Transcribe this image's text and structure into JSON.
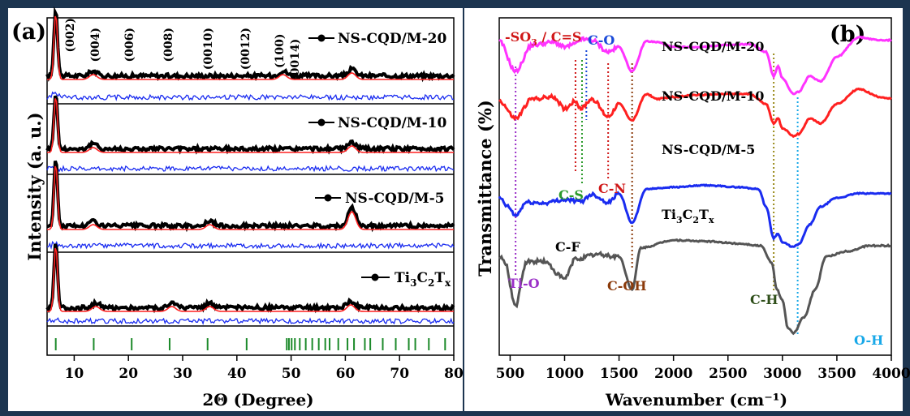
{
  "panel_a": {
    "label": "(a)",
    "ylabel": "Intensity (a. u.)",
    "peak_labels": [
      "(002)",
      "(004)",
      "(006)",
      "(008)",
      "(0010)",
      "(0012)",
      "(100)",
      "(0014)"
    ]
  },
  "panel_b": {
    "label": "(b)",
    "annotations": {
      "so3_prefix": "-SO",
      "so3_sub": "3",
      "so3_suffix": " / C=S",
      "co": "C-O",
      "cs": "C-S",
      "cn": "C-N",
      "cf": "C-F",
      "coh": "C-OH",
      "tio": "Ti-O",
      "ch": "C-H",
      "oh": "O-H"
    },
    "trace_label_ti3c2tx": {
      "t1": "Ti",
      "s1": "3",
      "t2": "C",
      "s2": "2",
      "t3": "T",
      "s3": "x"
    }
  },
  "legend_ti3c2tx": {
    "t1": "Ti",
    "s1": "3",
    "t2": "C",
    "s2": "2",
    "t3": "T",
    "s3": "x"
  },
  "colors": {
    "background": "#1c3550",
    "observed": "#000000",
    "fit": "#ff2020",
    "difference": "#1a2cf0",
    "bragg": "#1c8a2a",
    "ftir_m20": "#ff33ff",
    "ftir_m10": "#ff2020",
    "ftir_m5": "#1a2cf0",
    "ftir_ti3c2tx": "#555555"
  },
  "chart_data": [
    {
      "type": "line",
      "title": "",
      "xlabel": "2Θ (Degree)",
      "ylabel": "Intensity (a. u.)",
      "xlim": [
        5,
        80
      ],
      "x_ticks": [
        10,
        20,
        30,
        40,
        50,
        60,
        70,
        80
      ],
      "panels": [
        {
          "name": "NS-CQD/M-20",
          "main_peak_2theta": 6.6,
          "peaks_2theta": [
            6.6,
            13.5,
            48.5,
            61.2
          ]
        },
        {
          "name": "NS-CQD/M-10",
          "main_peak_2theta": 6.6,
          "peaks_2theta": [
            6.6,
            13.5,
            61.2
          ]
        },
        {
          "name": "NS-CQD/M-5",
          "main_peak_2theta": 6.6,
          "peaks_2theta": [
            6.6,
            13.5,
            35.0,
            61.2
          ]
        },
        {
          "name": "Ti3C2Tx",
          "main_peak_2theta": 6.6,
          "peaks_2theta": [
            6.6,
            14.0,
            28.0,
            35.0,
            61.0
          ]
        }
      ],
      "peak_positions_2theta": [
        7.7,
        13.8,
        20.8,
        27.9,
        34.9,
        41.8,
        48.0,
        50.8
      ],
      "bragg_positions_2theta": [
        6.6,
        13.6,
        20.6,
        27.6,
        34.6,
        41.8,
        49.2,
        49.6,
        50.1,
        50.7,
        51.6,
        52.7,
        53.9,
        55.1,
        56.3,
        57.1,
        58.7,
        60.4,
        61.6,
        63.6,
        64.6,
        66.9,
        69.3,
        71.7,
        72.9,
        75.4,
        78.4
      ]
    },
    {
      "type": "line",
      "title": "",
      "xlabel": "Wavenumber (cm⁻¹)",
      "ylabel": "Transmittance (%)",
      "xlim": [
        400,
        4000
      ],
      "x_ticks": [
        500,
        1000,
        1500,
        2000,
        2500,
        3000,
        3500,
        4000
      ],
      "marker_lines_cm1": [
        {
          "label": "Ti-O",
          "x": 550,
          "color": "#9b30c8"
        },
        {
          "label": "-SO3 / C=S",
          "x": 1100,
          "color": "#d01818"
        },
        {
          "label": "C-S",
          "x": 1160,
          "color": "#2a9a2a"
        },
        {
          "label": "C-O",
          "x": 1200,
          "color": "#1a4ad8"
        },
        {
          "label": "C-N",
          "x": 1400,
          "color": "#d01818"
        },
        {
          "label": "C-OH",
          "x": 1620,
          "color": "#8b3a0a"
        },
        {
          "label": "C-H",
          "x": 2920,
          "color": "#9a8a1a"
        },
        {
          "label": "O-H",
          "x": 3140,
          "color": "#18a8e8"
        }
      ],
      "series": [
        {
          "name": "NS-CQD/M-20",
          "x": [
            400,
            550,
            700,
            900,
            1000,
            1100,
            1150,
            1250,
            1400,
            1500,
            1620,
            1750,
            1850,
            2000,
            2200,
            2500,
            2700,
            2850,
            2920,
            2960,
            3000,
            3100,
            3150,
            3250,
            3350,
            3500,
            3700,
            3900,
            4000
          ],
          "y": [
            0.66,
            0.35,
            0.62,
            0.65,
            0.6,
            0.63,
            0.68,
            0.67,
            0.55,
            0.6,
            0.35,
            0.66,
            0.65,
            0.6,
            0.6,
            0.62,
            0.63,
            0.55,
            0.3,
            0.4,
            0.28,
            0.12,
            0.14,
            0.3,
            0.25,
            0.5,
            0.7,
            0.67,
            0.67
          ]
        },
        {
          "name": "NS-CQD/M-10",
          "x": [
            400,
            550,
            700,
            900,
            1000,
            1100,
            1150,
            1250,
            1400,
            1500,
            1620,
            1750,
            1850,
            2000,
            2200,
            2500,
            2700,
            2850,
            2920,
            2960,
            3000,
            3100,
            3150,
            3250,
            3350,
            3500,
            3700,
            3900,
            4000
          ],
          "y": [
            0.38,
            0.2,
            0.4,
            0.42,
            0.3,
            0.38,
            0.3,
            0.4,
            0.22,
            0.35,
            0.18,
            0.45,
            0.4,
            0.42,
            0.44,
            0.45,
            0.45,
            0.35,
            0.15,
            0.2,
            0.1,
            0.02,
            0.04,
            0.2,
            0.15,
            0.35,
            0.5,
            0.42,
            0.4
          ]
        },
        {
          "name": "NS-CQD/M-5",
          "x": [
            400,
            480,
            550,
            650,
            800,
            1000,
            1150,
            1250,
            1400,
            1500,
            1620,
            1750,
            2000,
            2300,
            2600,
            2780,
            2850,
            2920,
            2960,
            3000,
            3100,
            3150,
            3250,
            3350,
            3500,
            3700,
            3900,
            4000
          ],
          "y": [
            0.1,
            0.0,
            -0.1,
            0.05,
            0.04,
            0.08,
            0.06,
            0.14,
            0.05,
            0.15,
            -0.18,
            0.2,
            0.22,
            0.24,
            0.22,
            0.2,
            0.0,
            -0.35,
            -0.3,
            -0.4,
            -0.45,
            -0.42,
            -0.2,
            0.0,
            0.1,
            0.15,
            0.15,
            0.15
          ]
        },
        {
          "name": "Ti3C2Tx",
          "x": [
            400,
            450,
            550,
            650,
            800,
            1000,
            1100,
            1300,
            1500,
            1620,
            1700,
            2000,
            2300,
            2600,
            2800,
            2900,
            2950,
            3000,
            3050,
            3100,
            3200,
            3300,
            3400,
            3600,
            3800,
            4000
          ],
          "y": [
            0.1,
            0.05,
            -0.35,
            0.05,
            0.06,
            -0.1,
            0.08,
            0.12,
            0.1,
            -0.2,
            0.18,
            0.25,
            0.24,
            0.22,
            0.2,
            0.05,
            -0.2,
            -0.3,
            -0.55,
            -0.6,
            -0.45,
            -0.2,
            0.1,
            0.15,
            0.2,
            0.2
          ]
        }
      ]
    }
  ]
}
